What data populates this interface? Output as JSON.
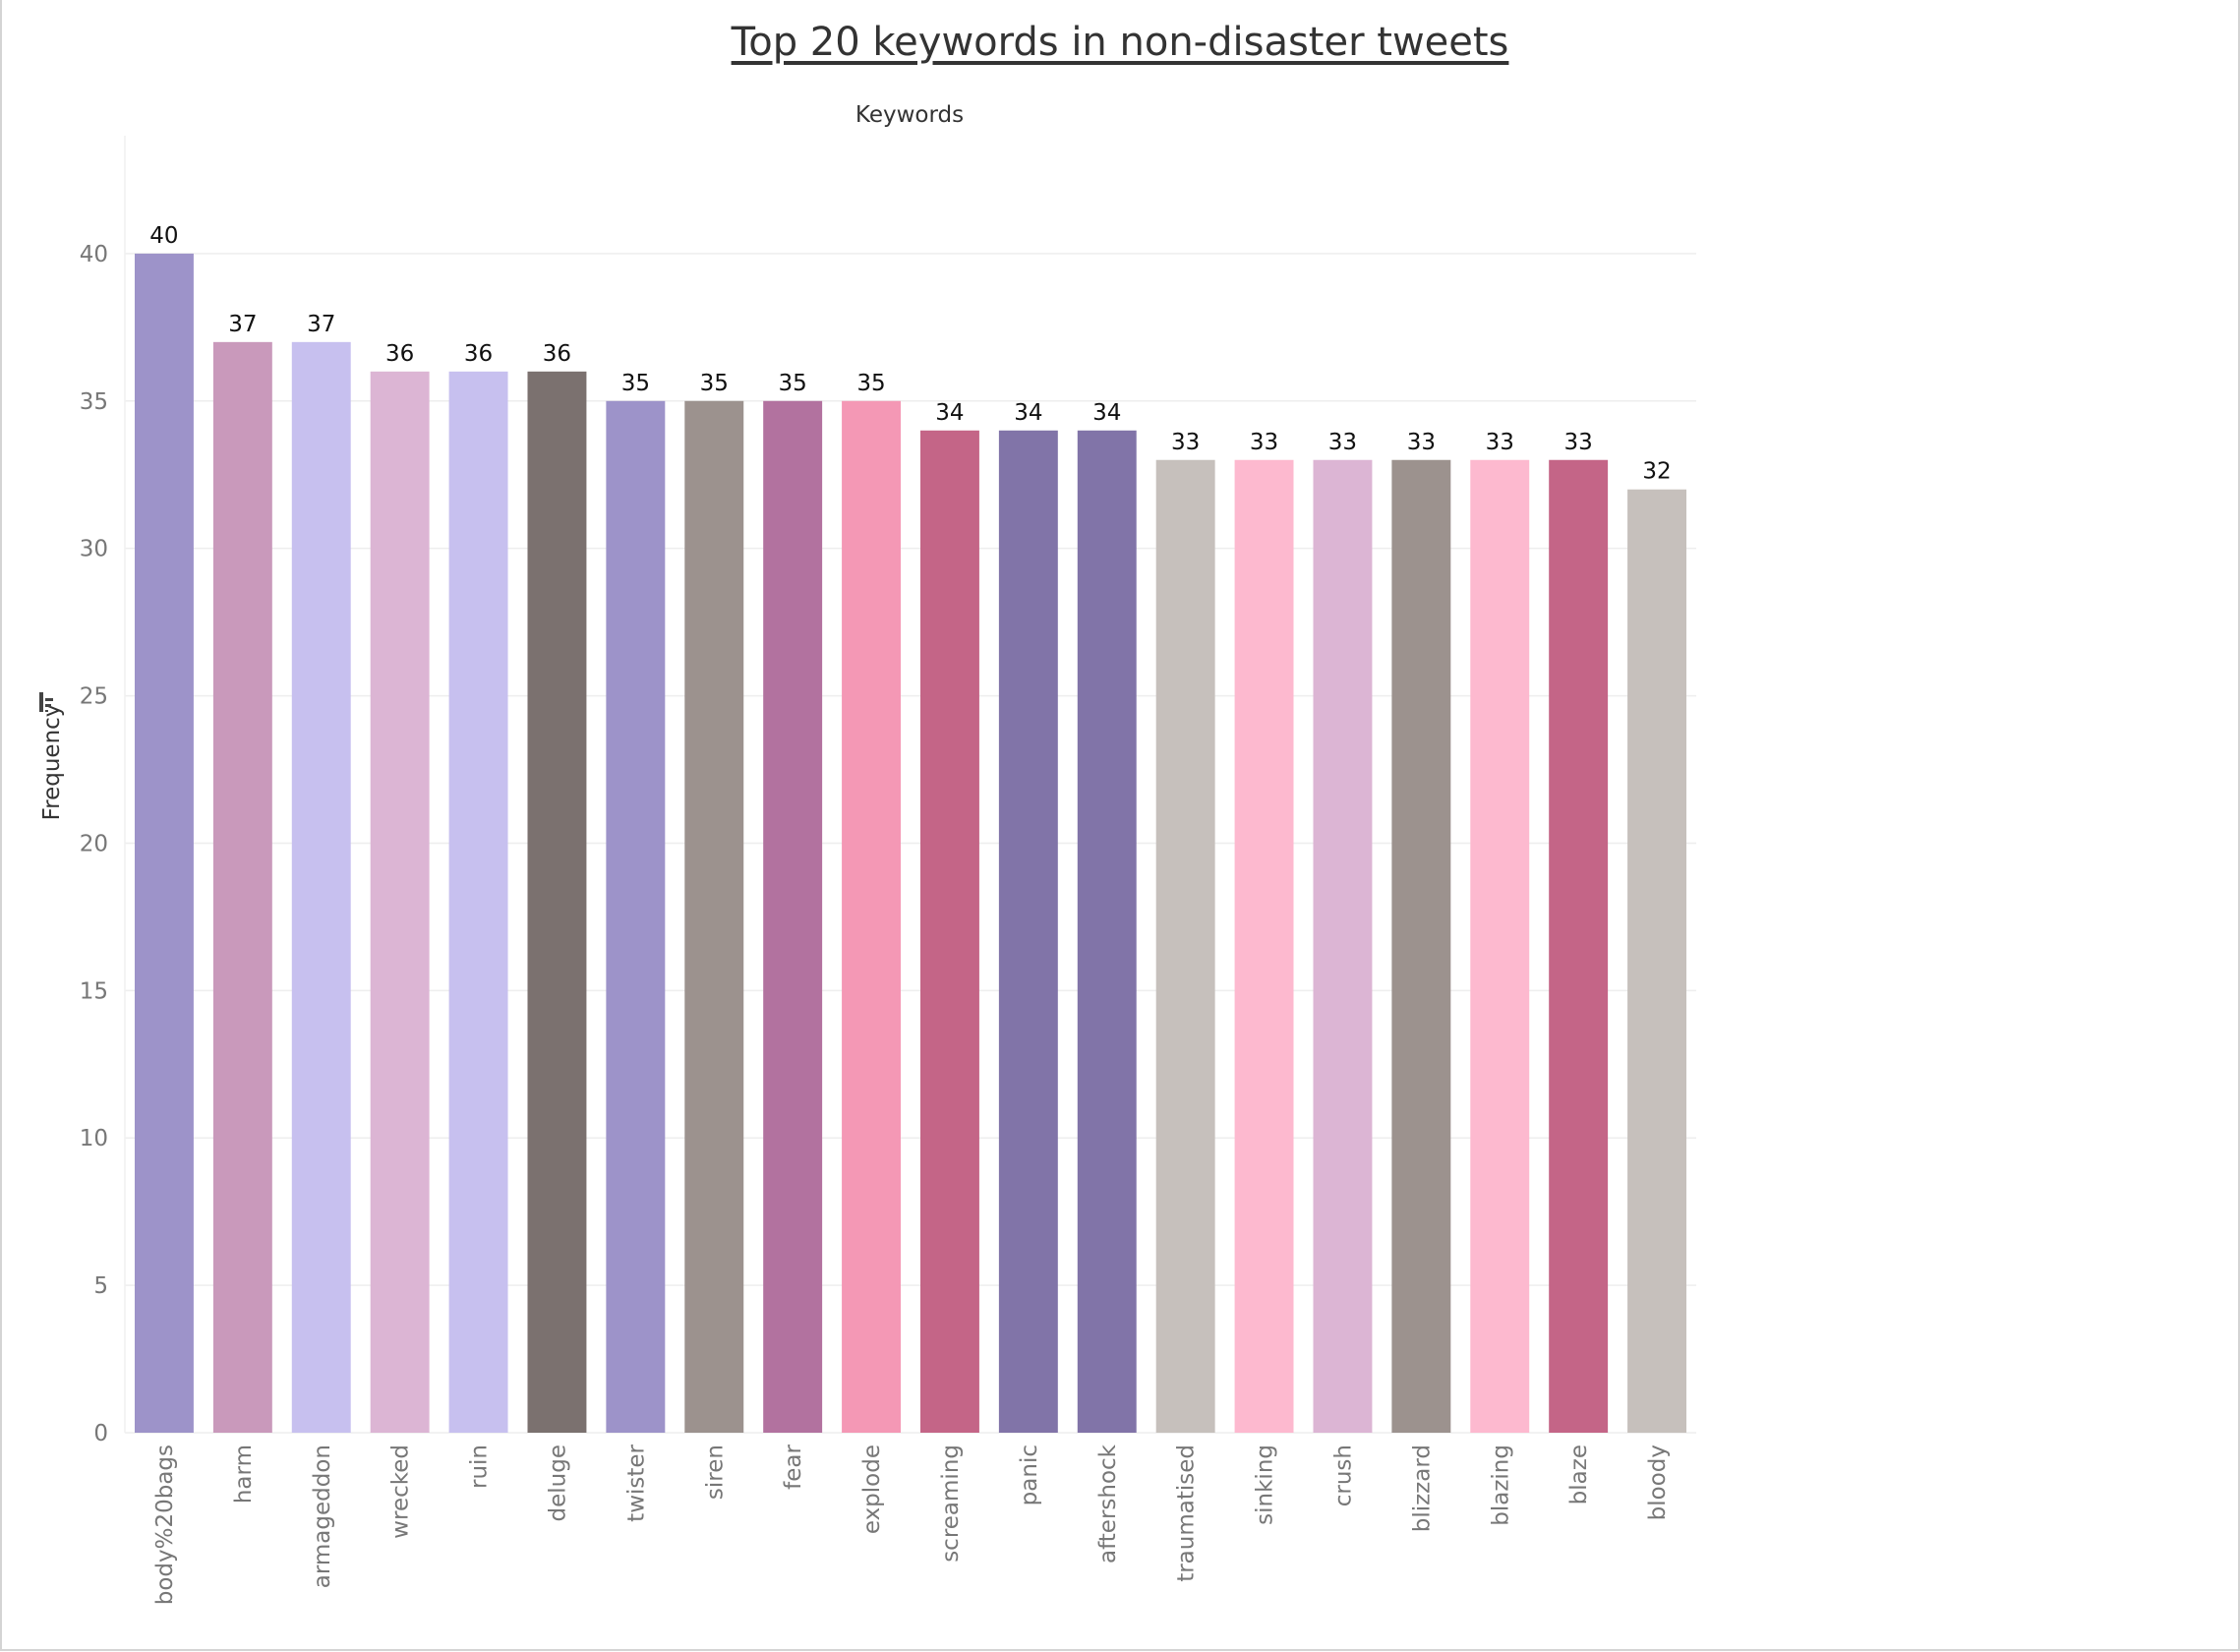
{
  "chart_data": {
    "type": "bar",
    "title": "Top 20 keywords in non-disaster tweets",
    "xlabel": "Keywords",
    "ylabel": "Frequency",
    "ylim": [
      0,
      44
    ],
    "yticks": [
      0,
      5,
      10,
      15,
      20,
      25,
      30,
      35,
      40
    ],
    "grid": true,
    "sort_icon": "sort-descending-icon",
    "categories": [
      "body%20bags",
      "harm",
      "armageddon",
      "wrecked",
      "ruin",
      "deluge",
      "twister",
      "siren",
      "fear",
      "explode",
      "screaming",
      "panic",
      "aftershock",
      "traumatised",
      "sinking",
      "crush",
      "blizzard",
      "blazing",
      "blaze",
      "bloody"
    ],
    "values": [
      40,
      37,
      37,
      36,
      36,
      36,
      35,
      35,
      35,
      35,
      34,
      34,
      34,
      33,
      33,
      33,
      33,
      33,
      33,
      32
    ],
    "colors": [
      "#9d93c9",
      "#c999bb",
      "#c7c0ef",
      "#dcb5d4",
      "#c7c0ef",
      "#7b716f",
      "#9d93c9",
      "#9c928e",
      "#b2729f",
      "#f498b5",
      "#c46587",
      "#8174a8",
      "#8174a8",
      "#c6c0bc",
      "#fdb9cf",
      "#dcb5d4",
      "#9c928e",
      "#fdb9cf",
      "#c46587",
      "#c6c0bc"
    ]
  }
}
